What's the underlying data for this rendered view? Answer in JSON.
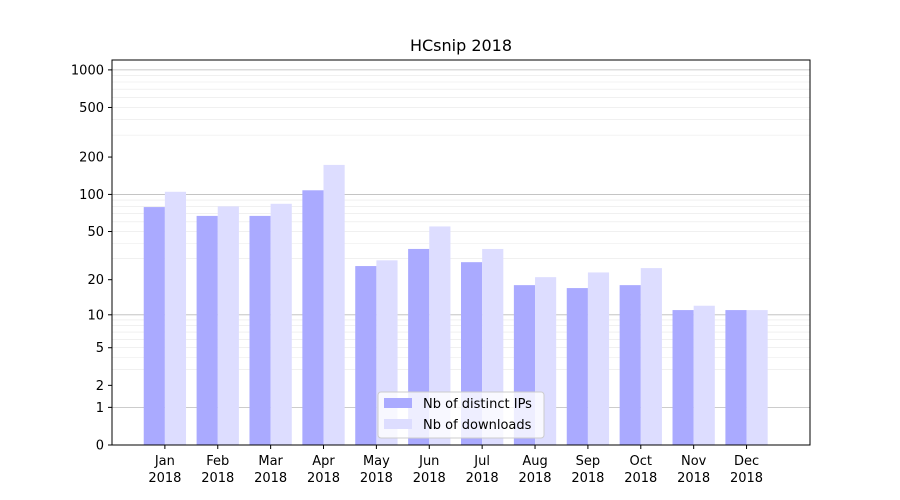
{
  "chart_data": {
    "type": "bar",
    "title": "HCsnip 2018",
    "xlabel": "",
    "ylabel": "",
    "yscale": "symlog",
    "ylim": [
      0,
      1200
    ],
    "grid": true,
    "legend_position": "bottom-center",
    "categories": [
      [
        "Jan",
        "2018"
      ],
      [
        "Feb",
        "2018"
      ],
      [
        "Mar",
        "2018"
      ],
      [
        "Apr",
        "2018"
      ],
      [
        "May",
        "2018"
      ],
      [
        "Jun",
        "2018"
      ],
      [
        "Jul",
        "2018"
      ],
      [
        "Aug",
        "2018"
      ],
      [
        "Sep",
        "2018"
      ],
      [
        "Oct",
        "2018"
      ],
      [
        "Nov",
        "2018"
      ],
      [
        "Dec",
        "2018"
      ]
    ],
    "yticks": [
      {
        "value": 0,
        "label": "0"
      },
      {
        "value": 1,
        "label": "1"
      },
      {
        "value": 2,
        "label": "2"
      },
      {
        "value": 5,
        "label": "5"
      },
      {
        "value": 10,
        "label": "10"
      },
      {
        "value": 20,
        "label": "20"
      },
      {
        "value": 50,
        "label": "50"
      },
      {
        "value": 100,
        "label": "100"
      },
      {
        "value": 200,
        "label": "200"
      },
      {
        "value": 500,
        "label": "500"
      },
      {
        "value": 1000,
        "label": "1000"
      }
    ],
    "series": [
      {
        "name": "Nb of distinct IPs",
        "color": "#aaaaff",
        "values": [
          79,
          67,
          67,
          108,
          26,
          36,
          28,
          18,
          17,
          18,
          11,
          11
        ]
      },
      {
        "name": "Nb of downloads",
        "color": "#ddddff",
        "values": [
          105,
          80,
          84,
          173,
          29,
          55,
          36,
          21,
          23,
          25,
          12,
          11
        ]
      }
    ]
  }
}
